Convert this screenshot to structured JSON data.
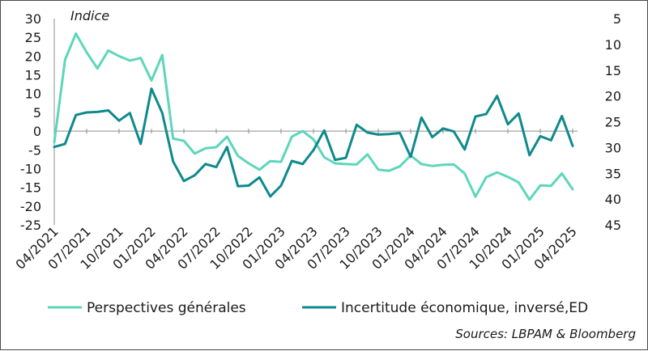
{
  "chart_data": {
    "type": "line",
    "ylabel": "Indice",
    "source": "Sources: LBPAM & Bloomberg",
    "left_axis": {
      "min": -25,
      "max": 30,
      "ticks": [
        30,
        25,
        20,
        15,
        10,
        5,
        0,
        -5,
        -10,
        -15,
        -20,
        -25
      ]
    },
    "right_axis": {
      "min": 5,
      "max": 45,
      "inverted": true,
      "ticks": [
        5,
        10,
        15,
        20,
        25,
        30,
        35,
        40,
        45
      ]
    },
    "x_labels": [
      "04/2021",
      "07/2021",
      "10/2021",
      "01/2022",
      "04/2022",
      "07/2022",
      "10/2022",
      "01/2023",
      "04/2023",
      "07/2023",
      "10/2023",
      "01/2024",
      "04/2024",
      "07/2024",
      "10/2024",
      "01/2025",
      "04/2025"
    ],
    "series": [
      {
        "name": "Perspectives générales",
        "axis": "left",
        "color": "#5ed6bb",
        "values": [
          -3,
          19,
          26,
          21,
          16.7,
          21.5,
          20,
          18.8,
          19.5,
          13.5,
          20.3,
          -2,
          -2.6,
          -6,
          -4.6,
          -4.3,
          -1.5,
          -6.6,
          -8.6,
          -10.3,
          -8,
          -8.2,
          -1.5,
          0,
          -2.2,
          -7,
          -8.6,
          -8.8,
          -8.9,
          -6.2,
          -10.3,
          -10.6,
          -9.4,
          -6.5,
          -8.8,
          -9.3,
          -9,
          -8.9,
          -11.3,
          -17.5,
          -12.3,
          -11,
          -12.2,
          -13.7,
          -18.3,
          -14.5,
          -14.6,
          -11.3,
          -15.5
        ]
      },
      {
        "name": "Incertitude économique, inversé,ED",
        "axis": "right",
        "color": "#0e8a8c",
        "values": [
          29.9,
          29.3,
          23.7,
          23.2,
          23.1,
          22.8,
          24.8,
          23.3,
          29.3,
          18.6,
          23.3,
          32.7,
          36.5,
          35.4,
          33.2,
          33.8,
          29.9,
          37.5,
          37.4,
          35.8,
          39.5,
          37.4,
          32.6,
          33.2,
          30.5,
          26.7,
          32.4,
          32.0,
          25.6,
          27.1,
          27.5,
          27.4,
          27.2,
          31.8,
          24.2,
          28.0,
          26.3,
          26.9,
          30.4,
          24.0,
          23.5,
          20.0,
          25.5,
          23.4,
          31.5,
          27.8,
          28.6,
          23.9,
          29.7
        ]
      }
    ]
  }
}
